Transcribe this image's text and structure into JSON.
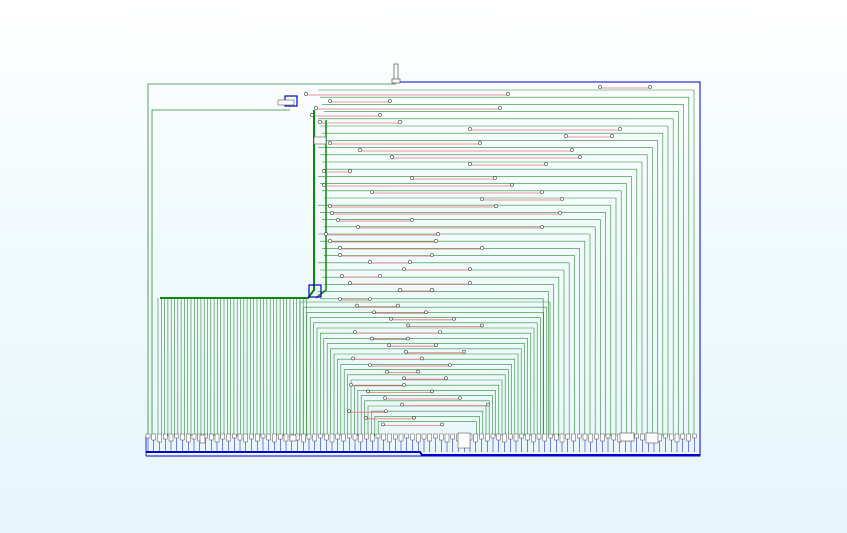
{
  "diagram": {
    "type": "circuit-tree-layout",
    "text_labels": [],
    "colors": {
      "background_top": "#ffffff",
      "background_bottom": "#e6f6fb",
      "net_green": "#2e8b2e",
      "trunk_green": "#0a8a0a",
      "net_red": "#e8707a",
      "net_blue": "#0000cc",
      "node_fill": "#ffffff",
      "node_stroke": "#444444",
      "terminal_fill": "#ffffff",
      "terminal_stroke": "#555555"
    },
    "node_count": 62,
    "terminal_count": 96,
    "loop_count": 30,
    "left_bus_count": 46
  }
}
